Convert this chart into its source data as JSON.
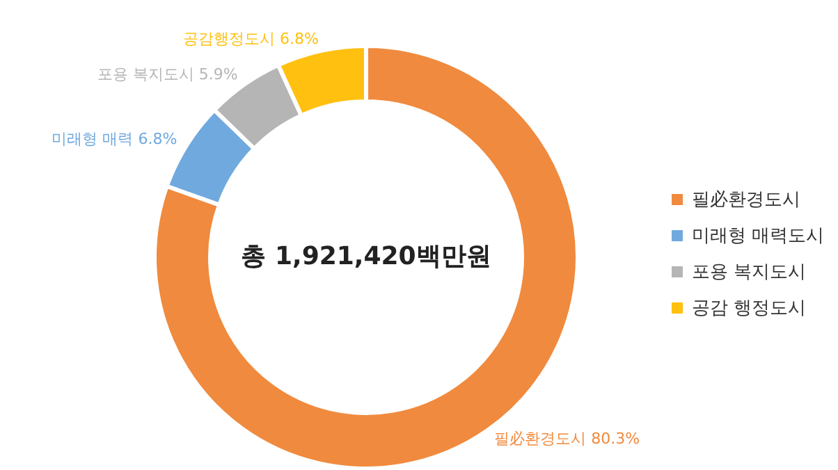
{
  "chart_data": {
    "type": "donut",
    "categories": [
      "필必환경도시",
      "미래형 매력도시",
      "포용 복지도시",
      "공감 행정도시"
    ],
    "values": [
      80.3,
      6.8,
      5.9,
      6.8
    ],
    "colors": [
      "#f08a3e",
      "#70a9de",
      "#b5b5b5",
      "#ffc010"
    ],
    "value_labels": [
      "필必환경도시 80.3%",
      "미래형 매력 6.8%",
      "포용 복지도시 5.9%",
      "공감행정도시 6.8%"
    ],
    "annotations": [
      "총 1,921,420백만원"
    ],
    "legend": "right"
  }
}
